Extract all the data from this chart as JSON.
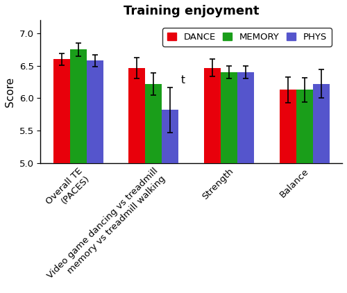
{
  "title": "Training enjoyment",
  "ylabel": "Score",
  "ylim": [
    5.0,
    7.2
  ],
  "yticks": [
    5.0,
    5.5,
    6.0,
    6.5,
    7.0
  ],
  "bar_bottom": 5.0,
  "categories": [
    "Overall TE\n(PACES)",
    "Video game dancing vs treadmill\nmemory vs treadmill walking",
    "Strength",
    "Balance"
  ],
  "series": [
    "DANCE",
    "MEMORY",
    "PHYS"
  ],
  "colors": [
    "#e8000b",
    "#1a9e1a",
    "#5555cc"
  ],
  "values": [
    [
      6.6,
      6.75,
      6.58
    ],
    [
      6.47,
      6.22,
      5.82
    ],
    [
      6.47,
      6.4,
      6.4
    ],
    [
      6.13,
      6.13,
      6.22
    ]
  ],
  "errors": [
    [
      0.09,
      0.1,
      0.09
    ],
    [
      0.16,
      0.17,
      0.35
    ],
    [
      0.13,
      0.1,
      0.1
    ],
    [
      0.2,
      0.19,
      0.22
    ]
  ],
  "annotation_text": "t",
  "annotation_group": 1,
  "annotation_series": 2,
  "bar_width": 0.22,
  "legend_loc": "upper right",
  "title_fontsize": 13,
  "label_fontsize": 11,
  "tick_fontsize": 9.5,
  "legend_fontsize": 9.5,
  "figwidth": 5.0,
  "figheight": 4.22
}
